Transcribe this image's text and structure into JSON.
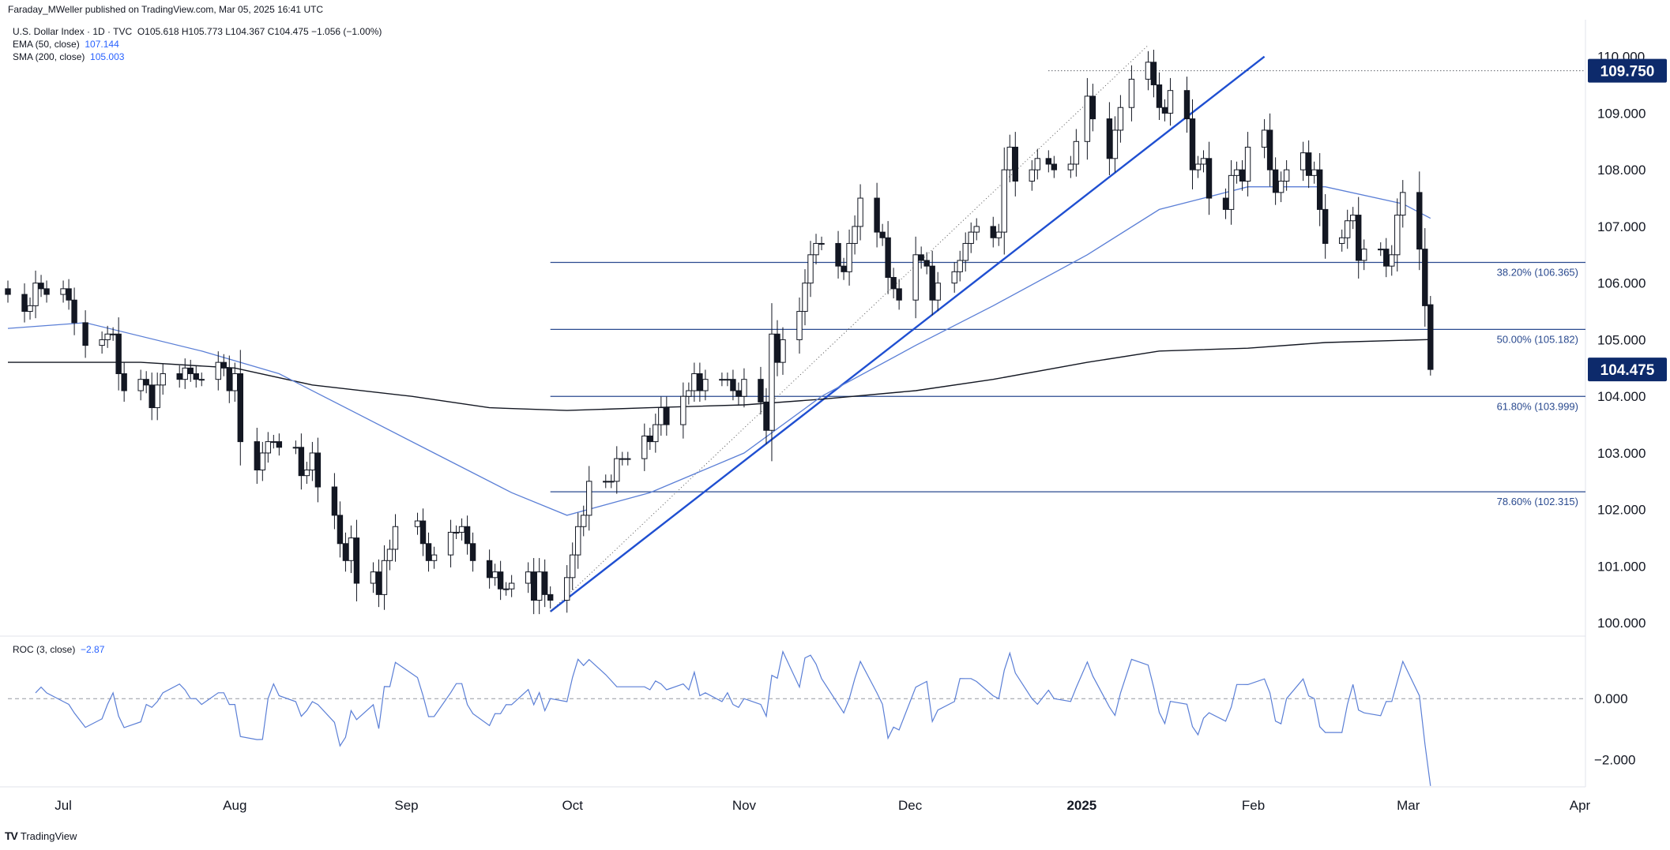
{
  "caption": "Faraday_MWeller published on TradingView.com, Mar 05, 2025 16:41 UTC",
  "legend": {
    "symbol_line": "U.S. Dollar Index · 1D · TVC",
    "ohlc": "O105.618 H105.773 L104.367 C104.475 −1.056 (−1.00%)",
    "ema_label": "EMA (50, close)",
    "ema_value": "107.144",
    "sma_label": "SMA (200, close)",
    "sma_value": "105.003"
  },
  "roc_legend": {
    "label": "ROC (3, close)",
    "value": "−2.87"
  },
  "footer": {
    "logo": "TV",
    "brand": "TradingView"
  },
  "colors": {
    "ema": "#5b7fd6",
    "sma": "#131722",
    "trend": "#1f4fd1",
    "fib": "#2a4a8f",
    "candle": "#131722",
    "price_tag": "#0d2a6b"
  },
  "chart_data": {
    "type": "candlestick",
    "symbol": "U.S. Dollar Index",
    "interval": "1D",
    "ylim": [
      99.85,
      110.65
    ],
    "y_ticks": [
      "100.000",
      "101.000",
      "102.000",
      "103.000",
      "104.000",
      "105.000",
      "106.000",
      "107.000",
      "108.000",
      "109.000",
      "110.000"
    ],
    "x_ticks": [
      {
        "label": "Jul",
        "date": "2024-07-01"
      },
      {
        "label": "Aug",
        "date": "2024-08-01"
      },
      {
        "label": "Sep",
        "date": "2024-09-01"
      },
      {
        "label": "Oct",
        "date": "2024-10-01"
      },
      {
        "label": "Nov",
        "date": "2024-11-01"
      },
      {
        "label": "Dec",
        "date": "2024-12-01"
      },
      {
        "label": "2025",
        "date": "2025-01-01"
      },
      {
        "label": "Feb",
        "date": "2025-02-01"
      },
      {
        "label": "Mar",
        "date": "2025-03-01"
      },
      {
        "label": "Apr",
        "date": "2025-04-01"
      }
    ],
    "x_range": [
      "2024-06-21",
      "2025-04-02"
    ],
    "price_tags": [
      {
        "label": "109.750",
        "value": 109.75
      },
      {
        "label": "104.475",
        "value": 104.475
      }
    ],
    "fib_levels": [
      {
        "label": "38.20% (106.365)",
        "value": 106.365
      },
      {
        "label": "50.00% (105.182)",
        "value": 105.182
      },
      {
        "label": "61.80% (103.999)",
        "value": 103.999
      },
      {
        "label": "78.60% (102.315)",
        "value": 102.315
      }
    ],
    "fib_start_date": "2024-09-27",
    "closes": [
      {
        "date": "2024-06-21",
        "close": 105.8
      },
      {
        "date": "2024-06-24",
        "close": 105.5
      },
      {
        "date": "2024-06-25",
        "close": 105.6
      },
      {
        "date": "2024-06-26",
        "close": 106.0
      },
      {
        "date": "2024-06-27",
        "close": 105.9
      },
      {
        "date": "2024-06-28",
        "close": 105.8
      },
      {
        "date": "2024-07-01",
        "close": 105.9
      },
      {
        "date": "2024-07-02",
        "close": 105.7
      },
      {
        "date": "2024-07-03",
        "close": 105.3
      },
      {
        "date": "2024-07-05",
        "close": 104.9
      },
      {
        "date": "2024-07-08",
        "close": 105.0
      },
      {
        "date": "2024-07-09",
        "close": 105.1
      },
      {
        "date": "2024-07-10",
        "close": 105.1
      },
      {
        "date": "2024-07-11",
        "close": 104.4
      },
      {
        "date": "2024-07-12",
        "close": 104.1
      },
      {
        "date": "2024-07-15",
        "close": 104.3
      },
      {
        "date": "2024-07-16",
        "close": 104.2
      },
      {
        "date": "2024-07-17",
        "close": 103.8
      },
      {
        "date": "2024-07-18",
        "close": 104.2
      },
      {
        "date": "2024-07-19",
        "close": 104.4
      },
      {
        "date": "2024-07-22",
        "close": 104.3
      },
      {
        "date": "2024-07-23",
        "close": 104.5
      },
      {
        "date": "2024-07-24",
        "close": 104.4
      },
      {
        "date": "2024-07-25",
        "close": 104.3
      },
      {
        "date": "2024-07-26",
        "close": 104.3
      },
      {
        "date": "2024-07-29",
        "close": 104.6
      },
      {
        "date": "2024-07-30",
        "close": 104.5
      },
      {
        "date": "2024-07-31",
        "close": 104.1
      },
      {
        "date": "2024-08-01",
        "close": 104.4
      },
      {
        "date": "2024-08-02",
        "close": 103.2
      },
      {
        "date": "2024-08-05",
        "close": 102.7
      },
      {
        "date": "2024-08-06",
        "close": 103.0
      },
      {
        "date": "2024-08-07",
        "close": 103.2
      },
      {
        "date": "2024-08-08",
        "close": 103.2
      },
      {
        "date": "2024-08-09",
        "close": 103.1
      },
      {
        "date": "2024-08-12",
        "close": 103.1
      },
      {
        "date": "2024-08-13",
        "close": 102.6
      },
      {
        "date": "2024-08-14",
        "close": 102.7
      },
      {
        "date": "2024-08-15",
        "close": 103.0
      },
      {
        "date": "2024-08-16",
        "close": 102.4
      },
      {
        "date": "2024-08-19",
        "close": 101.9
      },
      {
        "date": "2024-08-20",
        "close": 101.4
      },
      {
        "date": "2024-08-21",
        "close": 101.1
      },
      {
        "date": "2024-08-22",
        "close": 101.5
      },
      {
        "date": "2024-08-23",
        "close": 100.7
      },
      {
        "date": "2024-08-26",
        "close": 100.9
      },
      {
        "date": "2024-08-27",
        "close": 100.5
      },
      {
        "date": "2024-08-28",
        "close": 101.1
      },
      {
        "date": "2024-08-29",
        "close": 101.3
      },
      {
        "date": "2024-08-30",
        "close": 101.7
      },
      {
        "date": "2024-09-03",
        "close": 101.8
      },
      {
        "date": "2024-09-04",
        "close": 101.4
      },
      {
        "date": "2024-09-05",
        "close": 101.1
      },
      {
        "date": "2024-09-06",
        "close": 101.2
      },
      {
        "date": "2024-09-09",
        "close": 101.6
      },
      {
        "date": "2024-09-10",
        "close": 101.6
      },
      {
        "date": "2024-09-11",
        "close": 101.7
      },
      {
        "date": "2024-09-12",
        "close": 101.4
      },
      {
        "date": "2024-09-13",
        "close": 101.1
      },
      {
        "date": "2024-09-16",
        "close": 100.8
      },
      {
        "date": "2024-09-17",
        "close": 100.9
      },
      {
        "date": "2024-09-18",
        "close": 100.6
      },
      {
        "date": "2024-09-19",
        "close": 100.6
      },
      {
        "date": "2024-09-20",
        "close": 100.7
      },
      {
        "date": "2024-09-23",
        "close": 100.9
      },
      {
        "date": "2024-09-24",
        "close": 100.4
      },
      {
        "date": "2024-09-25",
        "close": 100.9
      },
      {
        "date": "2024-09-26",
        "close": 100.5
      },
      {
        "date": "2024-09-27",
        "close": 100.4
      },
      {
        "date": "2024-09-30",
        "close": 100.8
      },
      {
        "date": "2024-10-01",
        "close": 101.2
      },
      {
        "date": "2024-10-02",
        "close": 101.7
      },
      {
        "date": "2024-10-03",
        "close": 101.9
      },
      {
        "date": "2024-10-04",
        "close": 102.5
      },
      {
        "date": "2024-10-07",
        "close": 102.5
      },
      {
        "date": "2024-10-08",
        "close": 102.5
      },
      {
        "date": "2024-10-09",
        "close": 102.9
      },
      {
        "date": "2024-10-10",
        "close": 102.9
      },
      {
        "date": "2024-10-11",
        "close": 102.9
      },
      {
        "date": "2024-10-14",
        "close": 103.3
      },
      {
        "date": "2024-10-15",
        "close": 103.2
      },
      {
        "date": "2024-10-16",
        "close": 103.5
      },
      {
        "date": "2024-10-17",
        "close": 103.8
      },
      {
        "date": "2024-10-18",
        "close": 103.5
      },
      {
        "date": "2024-10-21",
        "close": 104.0
      },
      {
        "date": "2024-10-22",
        "close": 104.1
      },
      {
        "date": "2024-10-23",
        "close": 104.4
      },
      {
        "date": "2024-10-24",
        "close": 104.1
      },
      {
        "date": "2024-10-25",
        "close": 104.3
      },
      {
        "date": "2024-10-28",
        "close": 104.3
      },
      {
        "date": "2024-10-29",
        "close": 104.3
      },
      {
        "date": "2024-10-30",
        "close": 104.1
      },
      {
        "date": "2024-10-31",
        "close": 104.0
      },
      {
        "date": "2024-11-01",
        "close": 104.3
      },
      {
        "date": "2024-11-04",
        "close": 103.9
      },
      {
        "date": "2024-11-05",
        "close": 103.4
      },
      {
        "date": "2024-11-06",
        "close": 105.1
      },
      {
        "date": "2024-11-07",
        "close": 104.6
      },
      {
        "date": "2024-11-08",
        "close": 105.0
      },
      {
        "date": "2024-11-11",
        "close": 105.5
      },
      {
        "date": "2024-11-12",
        "close": 106.0
      },
      {
        "date": "2024-11-13",
        "close": 106.5
      },
      {
        "date": "2024-11-14",
        "close": 106.7
      },
      {
        "date": "2024-11-15",
        "close": 106.7
      },
      {
        "date": "2024-11-18",
        "close": 106.3
      },
      {
        "date": "2024-11-19",
        "close": 106.2
      },
      {
        "date": "2024-11-20",
        "close": 106.7
      },
      {
        "date": "2024-11-21",
        "close": 107.0
      },
      {
        "date": "2024-11-22",
        "close": 107.5
      },
      {
        "date": "2024-11-25",
        "close": 106.9
      },
      {
        "date": "2024-11-26",
        "close": 106.8
      },
      {
        "date": "2024-11-27",
        "close": 106.1
      },
      {
        "date": "2024-11-28",
        "close": 105.9
      },
      {
        "date": "2024-11-29",
        "close": 105.7
      },
      {
        "date": "2024-12-02",
        "close": 106.5
      },
      {
        "date": "2024-12-03",
        "close": 106.4
      },
      {
        "date": "2024-12-04",
        "close": 106.3
      },
      {
        "date": "2024-12-05",
        "close": 105.7
      },
      {
        "date": "2024-12-06",
        "close": 106.0
      },
      {
        "date": "2024-12-09",
        "close": 106.2
      },
      {
        "date": "2024-12-10",
        "close": 106.4
      },
      {
        "date": "2024-12-11",
        "close": 106.7
      },
      {
        "date": "2024-12-12",
        "close": 106.9
      },
      {
        "date": "2024-12-13",
        "close": 107.0
      },
      {
        "date": "2024-12-16",
        "close": 106.8
      },
      {
        "date": "2024-12-17",
        "close": 106.9
      },
      {
        "date": "2024-12-18",
        "close": 108.0
      },
      {
        "date": "2024-12-19",
        "close": 108.4
      },
      {
        "date": "2024-12-20",
        "close": 107.8
      },
      {
        "date": "2024-12-23",
        "close": 108.0
      },
      {
        "date": "2024-12-24",
        "close": 108.2
      },
      {
        "date": "2024-12-26",
        "close": 108.1
      },
      {
        "date": "2024-12-27",
        "close": 108.0
      },
      {
        "date": "2024-12-30",
        "close": 108.1
      },
      {
        "date": "2024-12-31",
        "close": 108.5
      },
      {
        "date": "2025-01-02",
        "close": 109.3
      },
      {
        "date": "2025-01-03",
        "close": 108.9
      },
      {
        "date": "2025-01-06",
        "close": 108.2
      },
      {
        "date": "2025-01-07",
        "close": 108.7
      },
      {
        "date": "2025-01-08",
        "close": 109.1
      },
      {
        "date": "2025-01-10",
        "close": 109.6
      },
      {
        "date": "2025-01-13",
        "close": 109.9
      },
      {
        "date": "2025-01-14",
        "close": 109.5
      },
      {
        "date": "2025-01-15",
        "close": 109.1
      },
      {
        "date": "2025-01-16",
        "close": 109.0
      },
      {
        "date": "2025-01-17",
        "close": 109.4
      },
      {
        "date": "2025-01-20",
        "close": 108.9
      },
      {
        "date": "2025-01-21",
        "close": 108.0
      },
      {
        "date": "2025-01-22",
        "close": 108.1
      },
      {
        "date": "2025-01-23",
        "close": 108.2
      },
      {
        "date": "2025-01-24",
        "close": 107.5
      },
      {
        "date": "2025-01-27",
        "close": 107.3
      },
      {
        "date": "2025-01-28",
        "close": 107.9
      },
      {
        "date": "2025-01-29",
        "close": 108.0
      },
      {
        "date": "2025-01-30",
        "close": 107.8
      },
      {
        "date": "2025-01-31",
        "close": 108.4
      },
      {
        "date": "2025-02-03",
        "close": 108.7
      },
      {
        "date": "2025-02-04",
        "close": 108.0
      },
      {
        "date": "2025-02-05",
        "close": 107.6
      },
      {
        "date": "2025-02-06",
        "close": 107.8
      },
      {
        "date": "2025-02-07",
        "close": 108.0
      },
      {
        "date": "2025-02-10",
        "close": 108.3
      },
      {
        "date": "2025-02-11",
        "close": 107.9
      },
      {
        "date": "2025-02-12",
        "close": 108.0
      },
      {
        "date": "2025-02-13",
        "close": 107.3
      },
      {
        "date": "2025-02-14",
        "close": 106.7
      },
      {
        "date": "2025-02-17",
        "close": 106.8
      },
      {
        "date": "2025-02-18",
        "close": 107.1
      },
      {
        "date": "2025-02-19",
        "close": 107.2
      },
      {
        "date": "2025-02-20",
        "close": 106.4
      },
      {
        "date": "2025-02-21",
        "close": 106.6
      },
      {
        "date": "2025-02-24",
        "close": 106.6
      },
      {
        "date": "2025-02-25",
        "close": 106.3
      },
      {
        "date": "2025-02-26",
        "close": 106.5
      },
      {
        "date": "2025-02-27",
        "close": 107.2
      },
      {
        "date": "2025-02-28",
        "close": 107.6
      },
      {
        "date": "2025-03-03",
        "close": 106.6
      },
      {
        "date": "2025-03-04",
        "close": 105.6
      },
      {
        "date": "2025-03-05",
        "close": 104.475
      }
    ],
    "last_bar": {
      "date": "2025-03-05",
      "open": 105.618,
      "high": 105.773,
      "low": 104.367,
      "close": 104.475
    },
    "ema50": [
      {
        "date": "2024-06-21",
        "value": 105.2
      },
      {
        "date": "2024-07-05",
        "value": 105.3
      },
      {
        "date": "2024-07-26",
        "value": 104.8
      },
      {
        "date": "2024-08-09",
        "value": 104.4
      },
      {
        "date": "2024-08-23",
        "value": 103.7
      },
      {
        "date": "2024-09-06",
        "value": 103.0
      },
      {
        "date": "2024-09-20",
        "value": 102.3
      },
      {
        "date": "2024-09-30",
        "value": 101.9
      },
      {
        "date": "2024-10-15",
        "value": 102.3
      },
      {
        "date": "2024-11-01",
        "value": 103.0
      },
      {
        "date": "2024-11-15",
        "value": 104.0
      },
      {
        "date": "2024-12-02",
        "value": 104.9
      },
      {
        "date": "2024-12-16",
        "value": 105.6
      },
      {
        "date": "2025-01-02",
        "value": 106.5
      },
      {
        "date": "2025-01-15",
        "value": 107.3
      },
      {
        "date": "2025-01-31",
        "value": 107.7
      },
      {
        "date": "2025-02-14",
        "value": 107.7
      },
      {
        "date": "2025-02-28",
        "value": 107.4
      },
      {
        "date": "2025-03-05",
        "value": 107.144
      }
    ],
    "sma200": [
      {
        "date": "2024-06-21",
        "value": 104.6
      },
      {
        "date": "2024-07-15",
        "value": 104.6
      },
      {
        "date": "2024-08-01",
        "value": 104.5
      },
      {
        "date": "2024-08-15",
        "value": 104.2
      },
      {
        "date": "2024-09-02",
        "value": 104.0
      },
      {
        "date": "2024-09-16",
        "value": 103.8
      },
      {
        "date": "2024-09-30",
        "value": 103.75
      },
      {
        "date": "2024-10-15",
        "value": 103.8
      },
      {
        "date": "2024-11-01",
        "value": 103.85
      },
      {
        "date": "2024-11-15",
        "value": 103.95
      },
      {
        "date": "2024-12-02",
        "value": 104.1
      },
      {
        "date": "2024-12-16",
        "value": 104.3
      },
      {
        "date": "2025-01-02",
        "value": 104.6
      },
      {
        "date": "2025-01-15",
        "value": 104.8
      },
      {
        "date": "2025-01-31",
        "value": 104.85
      },
      {
        "date": "2025-02-14",
        "value": 104.95
      },
      {
        "date": "2025-03-05",
        "value": 105.003
      }
    ],
    "trendlines": [
      {
        "name": "uptrend",
        "from": {
          "date": "2024-09-27",
          "value": 100.2
        },
        "to": {
          "date": "2025-02-03",
          "value": 110.0
        }
      },
      {
        "name": "fib-swing",
        "from": {
          "date": "2024-09-27",
          "value": 100.2
        },
        "to": {
          "date": "2025-01-13",
          "value": 110.2
        }
      }
    ],
    "roc": {
      "label": "ROC (3, close)",
      "ylim": [
        -2.9,
        1.9
      ],
      "y_ticks": [
        "0.000",
        "−2.000"
      ],
      "last": -2.87
    }
  }
}
